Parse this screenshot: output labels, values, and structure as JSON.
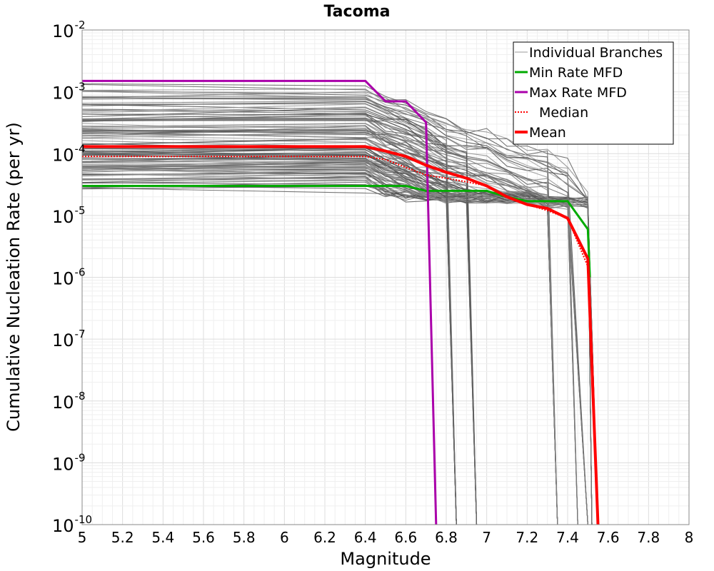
{
  "chart_data": {
    "type": "line",
    "title": "Tacoma",
    "xlabel": "Magnitude",
    "ylabel": "Cumulative Nucleation Rate (per yr)",
    "xlim": [
      5,
      8
    ],
    "ylim": [
      1e-10,
      0.01
    ],
    "yscale": "log",
    "grid": true,
    "legend_position": "top-right",
    "x_ticks": [
      "5",
      "5.2",
      "5.4",
      "5.6",
      "5.8",
      "6",
      "6.2",
      "6.4",
      "6.6",
      "6.8",
      "7",
      "7.2",
      "7.4",
      "7.6",
      "7.8",
      "8"
    ],
    "y_ticks": [
      {
        "base": "10",
        "exp": "-10",
        "value": -10
      },
      {
        "base": "10",
        "exp": "-9",
        "value": -9
      },
      {
        "base": "10",
        "exp": "-8",
        "value": -8
      },
      {
        "base": "10",
        "exp": "-7",
        "value": -7
      },
      {
        "base": "10",
        "exp": "-6",
        "value": -6
      },
      {
        "base": "10",
        "exp": "-5",
        "value": -5
      },
      {
        "base": "10",
        "exp": "-4",
        "value": -4
      },
      {
        "base": "10",
        "exp": "-3",
        "value": -3
      },
      {
        "base": "10",
        "exp": "-2",
        "value": -2
      }
    ],
    "branch_levels": [
      3e-05,
      3.5e-05,
      4e-05,
      4.5e-05,
      5e-05,
      5.5e-05,
      6e-05,
      6.5e-05,
      7e-05,
      7.5e-05,
      8e-05,
      9e-05,
      0.0001,
      0.00011,
      0.00012,
      0.00013,
      0.00015,
      0.00017,
      0.0002,
      0.00023,
      0.00026,
      0.0003,
      0.00035,
      0.0004,
      0.00045,
      0.0005,
      0.00055,
      0.0006,
      0.0008,
      0.0009,
      0.001,
      0.0011
    ],
    "branch_cutoffs": [
      6.85,
      6.95,
      7.35,
      7.45,
      7.5,
      7.52,
      7.55
    ],
    "series": [
      {
        "name": "Individual Branches",
        "color": "#555555",
        "style": "thin"
      },
      {
        "name": "Min Rate MFD",
        "color": "#00aa00",
        "style": "solid",
        "x": [
          5.0,
          6.4,
          6.5,
          6.6,
          6.7,
          6.8,
          7.0,
          7.1,
          7.2,
          7.3,
          7.4,
          7.5,
          7.51
        ],
        "y": [
          3e-05,
          3e-05,
          3e-05,
          3e-05,
          2.5e-05,
          2.5e-05,
          2.5e-05,
          2e-05,
          1.7e-05,
          1.7e-05,
          1.7e-05,
          6e-06,
          1e-06
        ]
      },
      {
        "name": "Max Rate MFD",
        "color": "#aa00aa",
        "style": "solid",
        "x": [
          5.0,
          6.4,
          6.5,
          6.6,
          6.7,
          6.75
        ],
        "y": [
          0.0015,
          0.0015,
          0.0007,
          0.0007,
          0.00032,
          1e-10
        ]
      },
      {
        "name": "Median",
        "color": "#ff0000",
        "style": "dotted",
        "x": [
          5.0,
          6.4,
          6.5,
          6.6,
          6.7,
          6.8,
          6.9,
          7.0,
          7.1,
          7.2,
          7.3,
          7.4,
          7.5,
          7.55
        ],
        "y": [
          9e-05,
          9e-05,
          8e-05,
          6e-05,
          4.5e-05,
          4e-05,
          3.5e-05,
          3e-05,
          2e-05,
          1.5e-05,
          1.2e-05,
          9e-06,
          1.5e-06,
          1e-10
        ]
      },
      {
        "name": "Mean",
        "color": "#ff0000",
        "style": "thick",
        "x": [
          5.0,
          6.4,
          6.5,
          6.6,
          6.7,
          6.8,
          6.9,
          7.0,
          7.1,
          7.2,
          7.3,
          7.4,
          7.5,
          7.55
        ],
        "y": [
          0.00013,
          0.00013,
          0.00011,
          9e-05,
          6.5e-05,
          5e-05,
          4e-05,
          3e-05,
          2e-05,
          1.5e-05,
          1.3e-05,
          9e-06,
          2e-06,
          1e-10
        ]
      }
    ]
  }
}
